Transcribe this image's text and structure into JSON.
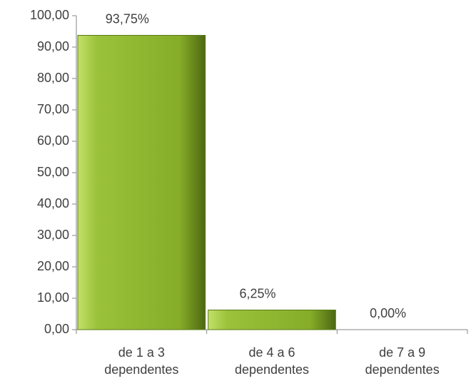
{
  "chart_data": {
    "type": "bar",
    "categories": [
      "de 1 a 3 dependentes",
      "de 4 a 6 dependentes",
      "de 7 a 9 dependentes"
    ],
    "values": [
      93.75,
      6.25,
      0
    ],
    "value_labels": [
      "93,75%",
      "6,25%",
      "0,00%"
    ],
    "color": "#8db52e",
    "ylim": [
      0,
      100
    ],
    "yticks": [
      {
        "value": 0,
        "label": "0,00"
      },
      {
        "value": 10,
        "label": "10,00"
      },
      {
        "value": 20,
        "label": "20,00"
      },
      {
        "value": 30,
        "label": "30,00"
      },
      {
        "value": 40,
        "label": "40,00"
      },
      {
        "value": 50,
        "label": "50,00"
      },
      {
        "value": 60,
        "label": "60,00"
      },
      {
        "value": 70,
        "label": "70,00"
      },
      {
        "value": 80,
        "label": "80,00"
      },
      {
        "value": 90,
        "label": "90,00"
      },
      {
        "value": 100,
        "label": "100,00"
      }
    ],
    "grid": false
  }
}
